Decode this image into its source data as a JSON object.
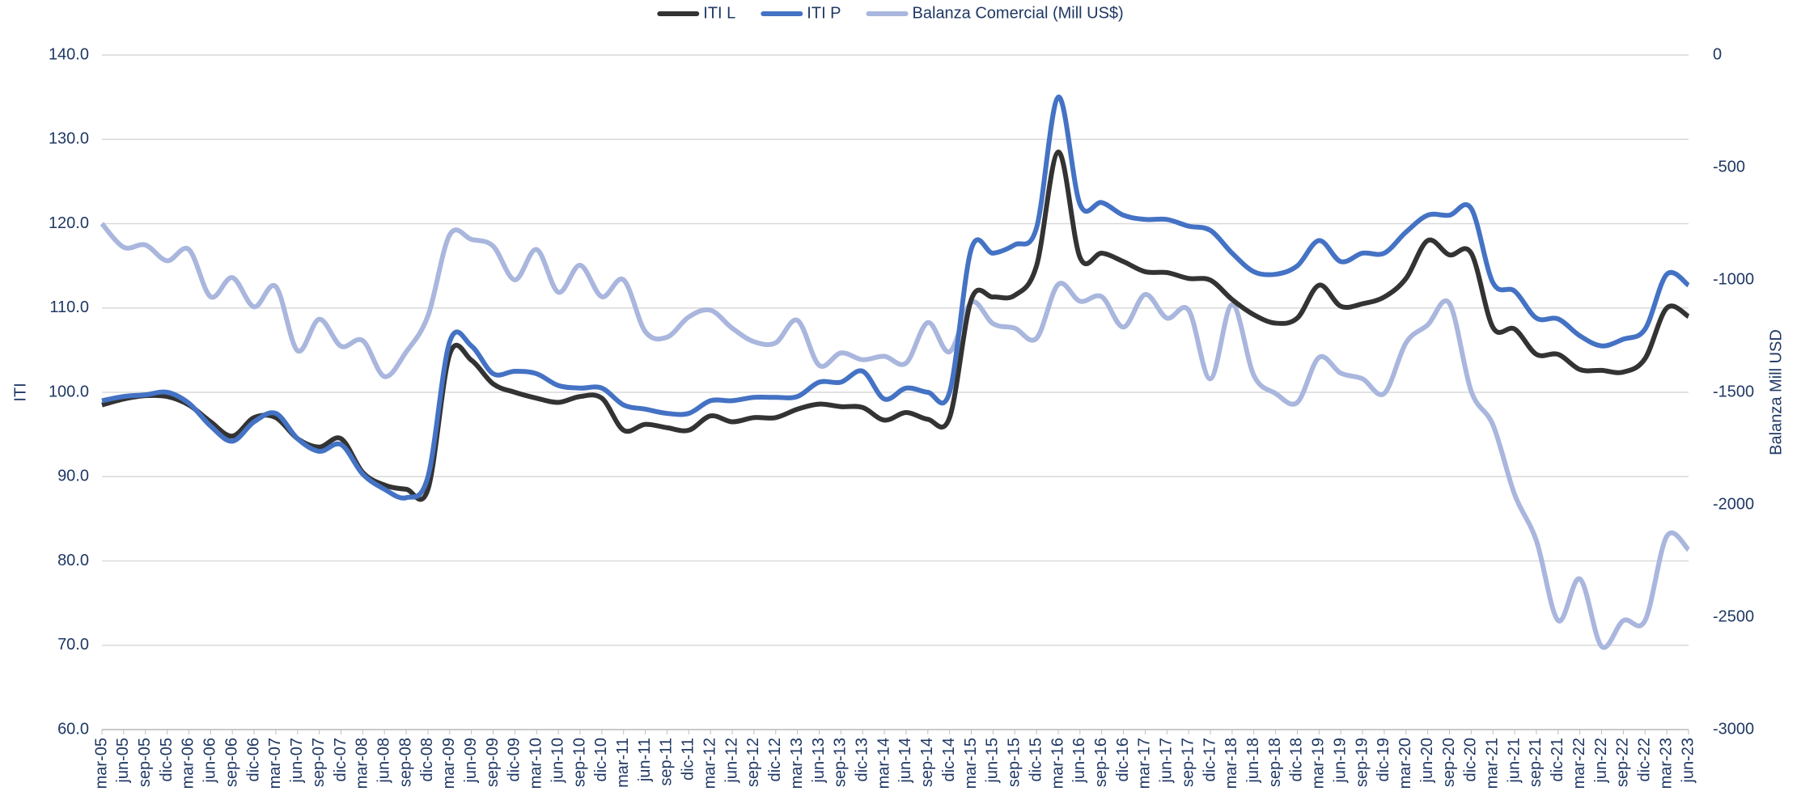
{
  "chart_data": {
    "type": "line",
    "categories": [
      "mar-05",
      "jun-05",
      "sep-05",
      "dic-05",
      "mar-06",
      "jun-06",
      "sep-06",
      "dic-06",
      "mar-07",
      "jun-07",
      "sep-07",
      "dic-07",
      "mar-08",
      "jun-08",
      "sep-08",
      "dic-08",
      "mar-09",
      "jun-09",
      "sep-09",
      "dic-09",
      "mar-10",
      "jun-10",
      "sep-10",
      "dic-10",
      "mar-11",
      "jun-11",
      "sep-11",
      "dic-11",
      "mar-12",
      "jun-12",
      "sep-12",
      "dic-12",
      "mar-13",
      "jun-13",
      "sep-13",
      "dic-13",
      "mar-14",
      "jun-14",
      "sep-14",
      "dic-14",
      "mar-15",
      "jun-15",
      "sep-15",
      "dic-15",
      "mar-16",
      "jun-16",
      "sep-16",
      "dic-16",
      "mar-17",
      "jun-17",
      "sep-17",
      "dic-17",
      "mar-18",
      "jun-18",
      "sep-18",
      "dic-18",
      "mar-19",
      "jun-19",
      "sep-19",
      "dic-19",
      "mar-20",
      "jun-20",
      "sep-20",
      "dic-20",
      "mar-21",
      "jun-21",
      "sep-21",
      "dic-21",
      "mar-22",
      "jun-22",
      "sep-22",
      "dic-22",
      "mar-23",
      "jun-23"
    ],
    "series": [
      {
        "name": "ITI L",
        "color": "#333333",
        "values": [
          98.5,
          99.2,
          99.6,
          99.5,
          98.5,
          96.5,
          94.8,
          97,
          97,
          94.5,
          93.5,
          94.5,
          90.5,
          89,
          88.5,
          88.5,
          104.5,
          103.8,
          101,
          100,
          99.3,
          98.8,
          99.5,
          99.3,
          95.5,
          96.2,
          95.8,
          95.5,
          97.2,
          96.5,
          97,
          97,
          98,
          98.6,
          98.3,
          98.2,
          96.7,
          97.6,
          96.8,
          97,
          111,
          111.3,
          111.5,
          115,
          128.5,
          116,
          116.5,
          115.5,
          114.3,
          114.2,
          113.5,
          113.3,
          111,
          109.2,
          108.2,
          108.8,
          112.7,
          110.2,
          110.5,
          111.3,
          113.5,
          118,
          116.3,
          116.5,
          107.7,
          107.5,
          104.5,
          104.5,
          102.7,
          102.6,
          102.4,
          104,
          110,
          109
        ]
      },
      {
        "name": "ITI P",
        "color": "#4472c4",
        "values": [
          99,
          99.5,
          99.7,
          100,
          98.7,
          96,
          94.2,
          96.5,
          97.5,
          94.5,
          93,
          93.8,
          90.3,
          88.5,
          87.5,
          90,
          106,
          105.5,
          102.2,
          102.5,
          102.2,
          100.8,
          100.5,
          100.5,
          98.5,
          98,
          97.5,
          97.5,
          99,
          99,
          99.4,
          99.4,
          99.5,
          101.2,
          101.2,
          102.5,
          99.2,
          100.5,
          100,
          100,
          117,
          116.5,
          117.5,
          119.5,
          135,
          122.3,
          122.5,
          121,
          120.5,
          120.5,
          119.7,
          119.2,
          116.5,
          114.3,
          114,
          115,
          118,
          115.5,
          116.5,
          116.5,
          119,
          121,
          121,
          121.8,
          113,
          112,
          108.8,
          108.7,
          106.7,
          105.5,
          106.3,
          107.5,
          114,
          112.7
        ]
      },
      {
        "name": "Balanza Comercial (Mill US$)",
        "color": "#a9b6dd",
        "axis": "y2",
        "values": [
          -750,
          -855,
          -845,
          -915,
          -865,
          -1075,
          -990,
          -1120,
          -1030,
          -1315,
          -1175,
          -1295,
          -1270,
          -1430,
          -1320,
          -1160,
          -800,
          -820,
          -850,
          -1000,
          -865,
          -1055,
          -935,
          -1075,
          -1000,
          -1230,
          -1255,
          -1165,
          -1135,
          -1215,
          -1275,
          -1280,
          -1180,
          -1380,
          -1325,
          -1355,
          -1340,
          -1370,
          -1190,
          -1320,
          -1100,
          -1195,
          -1215,
          -1260,
          -1020,
          -1095,
          -1075,
          -1210,
          -1065,
          -1170,
          -1135,
          -1440,
          -1110,
          -1425,
          -1505,
          -1545,
          -1345,
          -1415,
          -1440,
          -1505,
          -1280,
          -1200,
          -1105,
          -1495,
          -1645,
          -1955,
          -2160,
          -2515,
          -2330,
          -2630,
          -2515,
          -2515,
          -2140,
          -2200
        ]
      }
    ],
    "y_label": "ITI",
    "y2_label": "Balanza Mill USD",
    "ylim": [
      60,
      140
    ],
    "yticks": [
      {
        "value": 60,
        "label": "60.0"
      },
      {
        "value": 70,
        "label": "70.0"
      },
      {
        "value": 80,
        "label": "80.0"
      },
      {
        "value": 90,
        "label": "90.0"
      },
      {
        "value": 100,
        "label": "100.0"
      },
      {
        "value": 110,
        "label": "110.0"
      },
      {
        "value": 120,
        "label": "120.0"
      },
      {
        "value": 130,
        "label": "130.0"
      },
      {
        "value": 140,
        "label": "140.0"
      }
    ],
    "y2lim": [
      -3000,
      0
    ],
    "y2ticks": [
      -3000,
      -2500,
      -2000,
      -1500,
      -1000,
      -500,
      0
    ],
    "grid": true,
    "legend": "top"
  }
}
